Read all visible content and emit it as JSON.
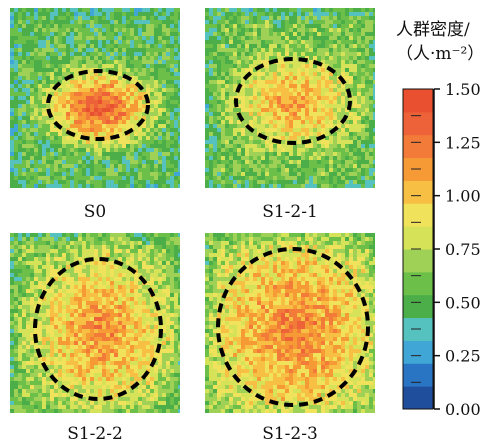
{
  "legend_title": [
    "人群密度/",
    "（人·m⁻²）"
  ],
  "colorbar": {
    "ticks": [
      "0.00",
      "0.25",
      "0.50",
      "0.75",
      "1.00",
      "1.25",
      "1.50"
    ],
    "range": [
      0,
      1.5
    ],
    "colors": [
      "#1f4e9c",
      "#2a74c4",
      "#3fa6d6",
      "#55c2c0",
      "#4cae49",
      "#6cc04a",
      "#9fd157",
      "#d6e258",
      "#f0e25a",
      "#f7c044",
      "#f59a35",
      "#f27b3a",
      "#ee6239",
      "#e8502f"
    ]
  },
  "chart_data": [
    {
      "type": "heatmap",
      "label": "S0",
      "ellipse": "ellipse",
      "density_peak": 1.45,
      "density_edge": 0.55
    },
    {
      "type": "heatmap",
      "label": "S1-2-1",
      "ellipse": "ellipse",
      "density_peak": 1.15,
      "density_edge": 0.6
    },
    {
      "type": "heatmap",
      "label": "S1-2-2",
      "ellipse": "circle",
      "density_peak": 1.2,
      "density_edge": 0.65
    },
    {
      "type": "heatmap",
      "label": "S1-2-3",
      "ellipse": "circle",
      "density_peak": 1.25,
      "density_edge": 0.7
    }
  ]
}
